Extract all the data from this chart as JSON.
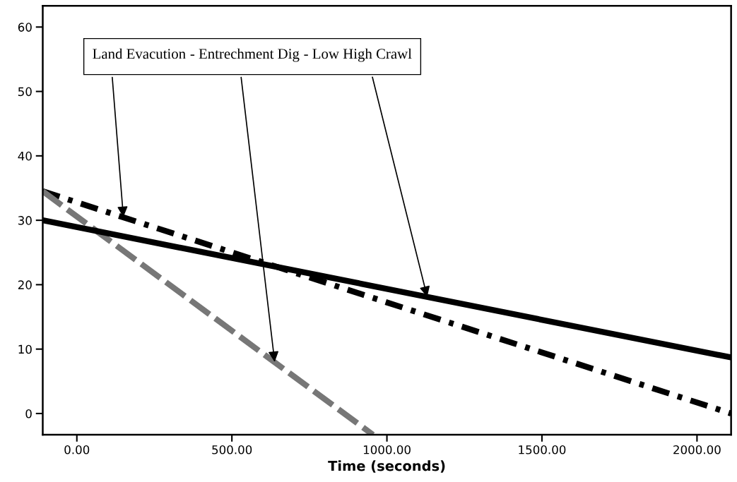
{
  "chart_data": {
    "type": "line",
    "xlabel": "Time (seconds)",
    "xlim": [
      -110,
      2110
    ],
    "ylim": [
      -3.3,
      63.3
    ],
    "xticks": [
      {
        "value": 0,
        "label": "0.00"
      },
      {
        "value": 500,
        "label": "500.00"
      },
      {
        "value": 1000,
        "label": "1000.00"
      },
      {
        "value": 1500,
        "label": "1500.00"
      },
      {
        "value": 2000,
        "label": "2000.00"
      }
    ],
    "yticks": [
      0,
      10,
      20,
      30,
      40,
      50,
      60
    ],
    "grid": false,
    "legend": false,
    "marker": "none",
    "series": [
      {
        "color": "#000000",
        "line_style": "dashdot",
        "x": [
          -110,
          2110
        ],
        "values": [
          34.5,
          0
        ]
      },
      {
        "color": "#777777",
        "line_style": "dashed",
        "x": [
          -110,
          955
        ],
        "values": [
          34.5,
          -3.3
        ]
      },
      {
        "color": "#000000",
        "line_style": "solid",
        "x": [
          -110,
          2110
        ],
        "values": [
          30,
          8.7
        ]
      }
    ],
    "annotations": [
      {
        "text": "Land Evacution",
        "x": 150,
        "y": 30.5
      },
      {
        "text": "- Entrechment Dig",
        "x": 638,
        "y": 8.0
      },
      {
        "text": "- Low High Crawl",
        "x": 1130,
        "y": 18.1
      }
    ]
  }
}
